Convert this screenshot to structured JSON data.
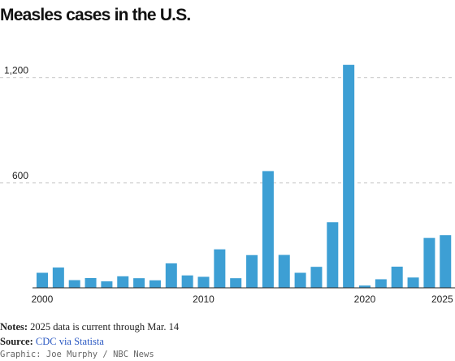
{
  "title": "Measles cases in the U.S.",
  "notes": {
    "label": "Notes:",
    "text": "2025 data is current through Mar. 14"
  },
  "source": {
    "label": "Source:",
    "text": "CDC via Statista"
  },
  "credit": "Graphic: Joe Murphy / NBC News",
  "colors": {
    "bar": "#3d9fd4",
    "gridline": "#c8c8c8",
    "axis": "#222222",
    "link": "#2b59c3"
  },
  "chart_data": {
    "type": "bar",
    "title": "Measles cases in the U.S.",
    "xlabel": "",
    "ylabel": "",
    "categories": [
      "2000",
      "2001",
      "2002",
      "2003",
      "2004",
      "2005",
      "2006",
      "2007",
      "2008",
      "2009",
      "2010",
      "2011",
      "2012",
      "2013",
      "2014",
      "2015",
      "2016",
      "2017",
      "2018",
      "2019",
      "2020",
      "2021",
      "2022",
      "2023",
      "2024",
      "2025"
    ],
    "values": [
      86,
      116,
      44,
      56,
      37,
      66,
      55,
      43,
      140,
      71,
      63,
      220,
      55,
      187,
      667,
      188,
      86,
      120,
      375,
      1274,
      13,
      49,
      121,
      59,
      285,
      301
    ],
    "ylim": [
      0,
      1310
    ],
    "y_ticks": [
      {
        "value": 600,
        "label": "600"
      },
      {
        "value": 1200,
        "label": "1,200"
      }
    ],
    "x_ticks": [
      {
        "value": "2000",
        "label": "2000"
      },
      {
        "value": "2010",
        "label": "2010"
      },
      {
        "value": "2020",
        "label": "2020"
      },
      {
        "value": "2025",
        "label": "2025"
      }
    ],
    "grid": true,
    "legend": "none"
  }
}
